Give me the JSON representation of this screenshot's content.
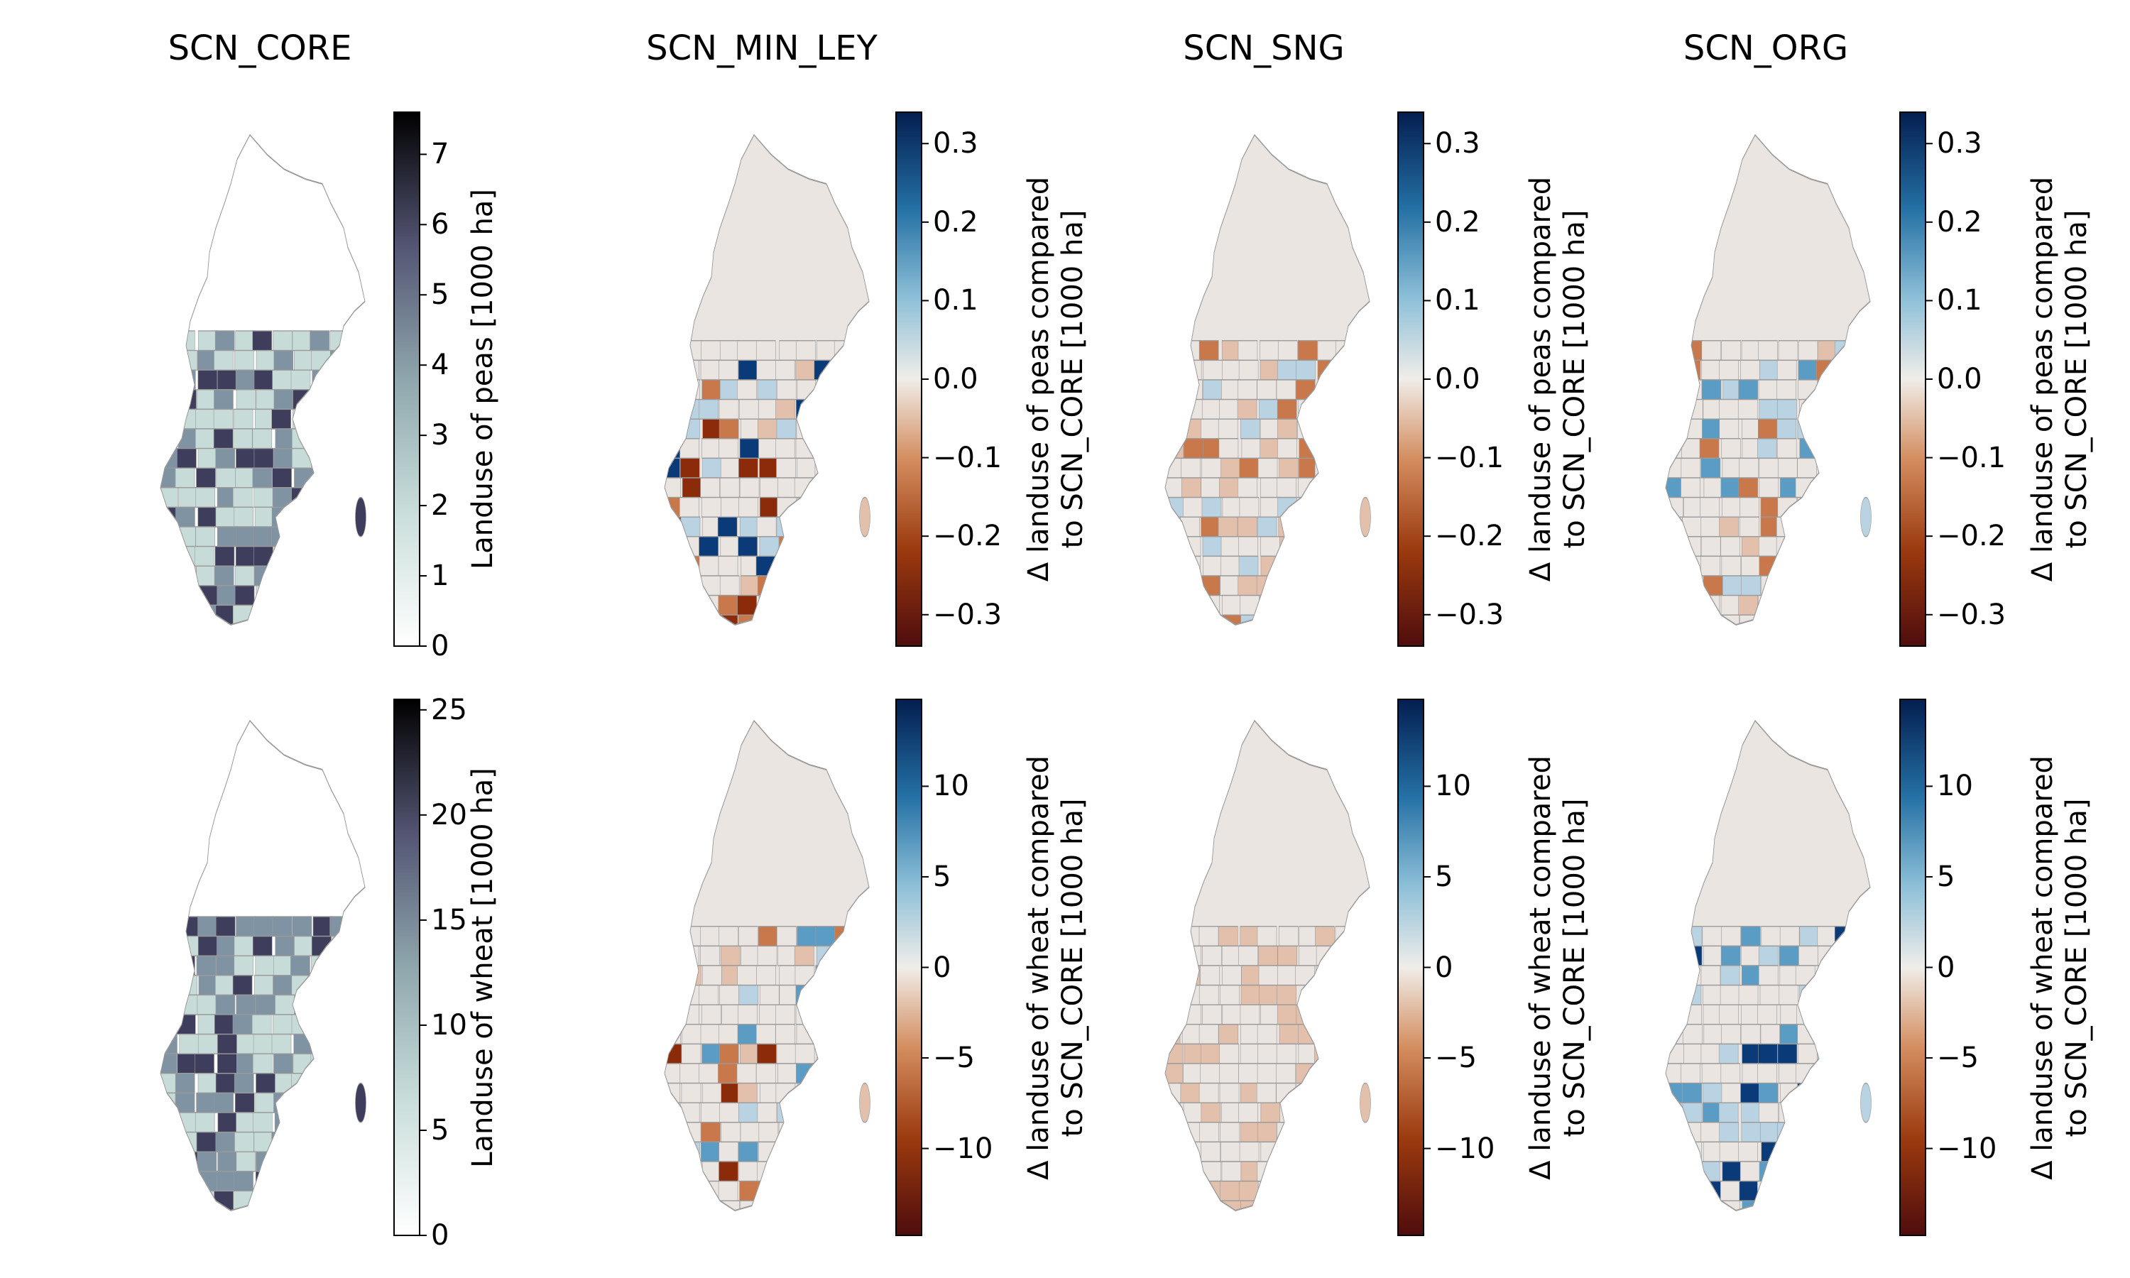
{
  "titles": [
    "SCN_CORE",
    "SCN_MIN_LEY",
    "SCN_SNG",
    "SCN_ORG"
  ],
  "colorbars": {
    "peas_abs": {
      "label": "Landuse of peas [1000 ha]",
      "ticks": [
        "0",
        "1",
        "2",
        "3",
        "4",
        "5",
        "6",
        "7"
      ],
      "range": [
        0,
        7.6
      ],
      "palette": "bone_r"
    },
    "peas_delta": {
      "label_line1": "Δ landuse of peas compared",
      "label_line2": "to SCN_CORE [1000 ha]",
      "ticks": [
        "0.3",
        "0.2",
        "0.1",
        "0.0",
        "−0.1",
        "−0.2",
        "−0.3"
      ],
      "range": [
        -0.34,
        0.34
      ],
      "palette": "vik"
    },
    "wheat_abs": {
      "label": "Landuse of wheat [1000 ha]",
      "ticks": [
        "0",
        "5",
        "10",
        "15",
        "20",
        "25"
      ],
      "range": [
        0,
        25.5
      ],
      "palette": "bone_r"
    },
    "wheat_delta": {
      "label_line1": "Δ landuse of wheat compared",
      "label_line2": "to SCN_CORE [1000 ha]",
      "ticks": [
        "10",
        "5",
        "0",
        "−5",
        "−10"
      ],
      "range": [
        -14.8,
        14.8
      ],
      "palette": "vik"
    }
  },
  "colors": {
    "neutral_region": "#ebe5e2",
    "light_orange": "#e2c0ac",
    "mid_orange": "#c8784a",
    "dark_orange": "#8b2b0a",
    "light_blue": "#b9d3e2",
    "mid_blue": "#5a9cc4",
    "dark_blue": "#0b3a78",
    "abs_light": "#c7dcd9",
    "abs_mid": "#7f93a3",
    "abs_dark": "#3e3e5c"
  },
  "map_legend": {
    "map_area": "Sweden municipalities"
  }
}
